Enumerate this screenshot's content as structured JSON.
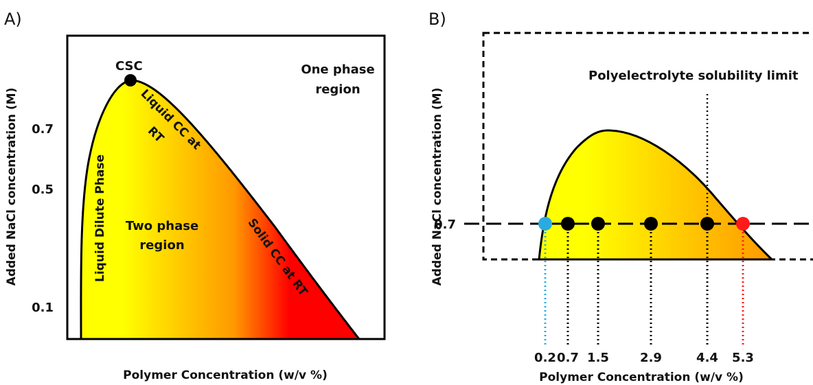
{
  "panel_a": {
    "letter": "A)",
    "ylabel": "Added NaCl concentration (M)",
    "xlabel": "Polymer Concentration (w/v %)",
    "yticks": [
      "0.7",
      "0.5",
      "0.1"
    ],
    "critical_point_label": "CSC",
    "one_phase_line1": "One phase",
    "one_phase_line2": "region",
    "two_phase_line1": "Two phase",
    "two_phase_line2": "region",
    "dilute_phase": "Liquid Dilute Phase",
    "liquid_cc_line1": "Liquid CC at",
    "liquid_cc_line2": "RT",
    "solid_cc": "Solid CC at RT",
    "colors": {
      "gradient_start": "#ffff00",
      "gradient_mid": "#ff9900",
      "gradient_end": "#ff0000"
    }
  },
  "panel_b": {
    "letter": "B)",
    "ylabel": "Added NaCl concentration (M)",
    "xlabel": "Polymer Concentration (w/v %)",
    "ytick": "0.7",
    "solubility_label": "Polyelectrolyte solubility limit",
    "colors": {
      "gradient_start": "#ffff00",
      "gradient_end": "#ff9900",
      "first_point": "#29abe2",
      "last_point": "#ff1a1a",
      "other_points": "#000000"
    }
  },
  "chart_data": [
    {
      "type": "area",
      "title": "",
      "xlabel": "Polymer Concentration (w/v %)",
      "ylabel": "Added NaCl concentration (M)",
      "yticks": [
        0.7,
        0.5,
        0.1
      ],
      "annotations": [
        "CSC",
        "One phase region",
        "Two phase region",
        "Liquid Dilute Phase",
        "Liquid CC at RT",
        "Solid CC at RT"
      ]
    },
    {
      "type": "scatter",
      "title": "",
      "xlabel": "Polymer Concentration (w/v %)",
      "ylabel": "Added NaCl concentration (M)",
      "yticks": [
        0.7
      ],
      "x": [
        0.2,
        0.7,
        1.5,
        2.9,
        4.4,
        5.3
      ],
      "x_labels": [
        "0.2",
        "0.7",
        "1.5",
        "2.9",
        "4.4",
        "5.3"
      ],
      "y": [
        0.7,
        0.7,
        0.7,
        0.7,
        0.7,
        0.7
      ],
      "point_colors": [
        "#29abe2",
        "#000000",
        "#000000",
        "#000000",
        "#000000",
        "#ff1a1a"
      ],
      "annotations": [
        "Polyelectrolyte solubility limit"
      ]
    }
  ]
}
